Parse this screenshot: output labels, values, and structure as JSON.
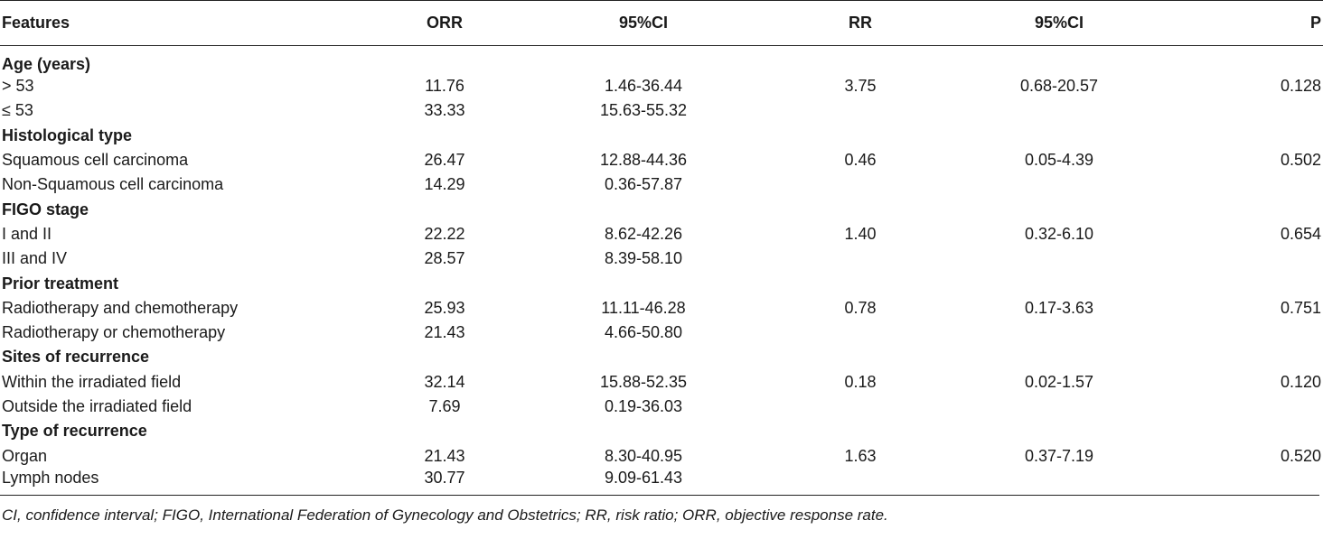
{
  "table": {
    "headers": [
      "Features",
      "ORR",
      "95%CI",
      "RR",
      "95%CI",
      "P"
    ],
    "groups": [
      {
        "title": "Age (years)",
        "rows": [
          [
            "> 53",
            "11.76",
            "1.46-36.44",
            "3.75",
            "0.68-20.57",
            "0.128"
          ],
          [
            "≤ 53",
            "33.33",
            "15.63-55.32",
            "",
            "",
            ""
          ]
        ]
      },
      {
        "title": "Histological type",
        "rows": [
          [
            "Squamous cell carcinoma",
            "26.47",
            "12.88-44.36",
            "0.46",
            "0.05-4.39",
            "0.502"
          ],
          [
            "Non-Squamous cell carcinoma",
            "14.29",
            "0.36-57.87",
            "",
            "",
            ""
          ]
        ]
      },
      {
        "title": "FIGO stage",
        "rows": [
          [
            "I and II",
            "22.22",
            "8.62-42.26",
            "1.40",
            "0.32-6.10",
            "0.654"
          ],
          [
            "III and IV",
            "28.57",
            "8.39-58.10",
            "",
            "",
            ""
          ]
        ]
      },
      {
        "title": "Prior treatment",
        "rows": [
          [
            "Radiotherapy and chemotherapy",
            "25.93",
            "11.11-46.28",
            "0.78",
            "0.17-3.63",
            "0.751"
          ],
          [
            "Radiotherapy or chemotherapy",
            "21.43",
            "4.66-50.80",
            "",
            "",
            ""
          ]
        ]
      },
      {
        "title": "Sites of recurrence",
        "rows": [
          [
            "Within the irradiated field",
            "32.14",
            "15.88-52.35",
            "0.18",
            "0.02-1.57",
            "0.120"
          ],
          [
            "Outside the irradiated field",
            "7.69",
            "0.19-36.03",
            "",
            "",
            ""
          ]
        ]
      },
      {
        "title": "Type of recurrence",
        "rows": [
          [
            "Organ",
            "21.43",
            "8.30-40.95",
            "1.63",
            "0.37-7.19",
            "0.520"
          ],
          [
            "Lymph nodes",
            "30.77",
            "9.09-61.43",
            "",
            "",
            ""
          ]
        ]
      }
    ]
  },
  "footnote": "CI, confidence interval; FIGO, International Federation of Gynecology and Obstetrics; RR, risk ratio; ORR, objective response rate."
}
